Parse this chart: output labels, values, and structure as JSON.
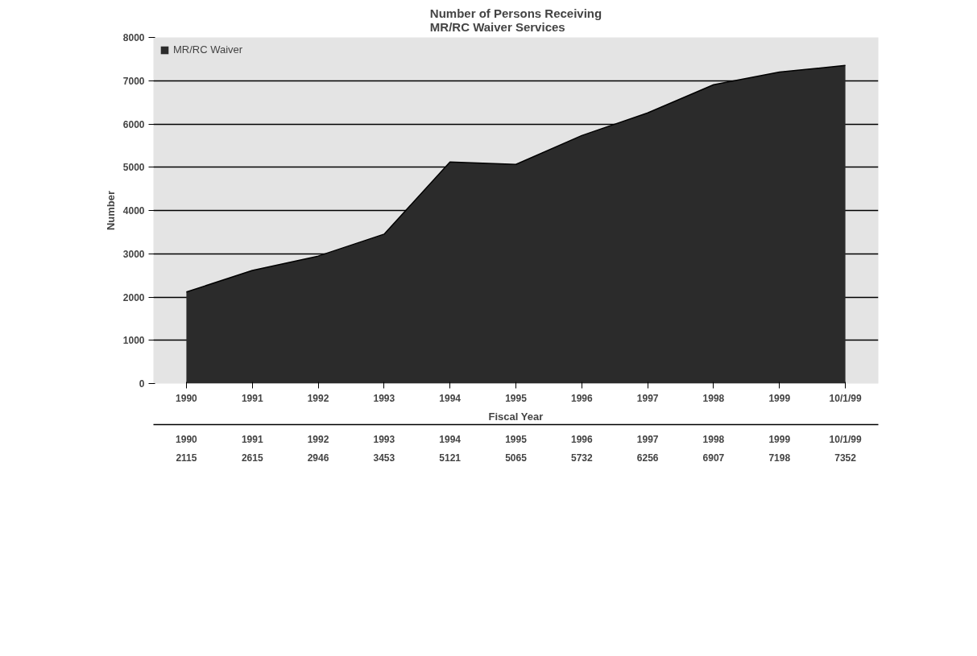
{
  "chart_data": {
    "type": "area",
    "title": "Number of Persons Receiving\nMR/RC Waiver Services",
    "xlabel": "Fiscal Year",
    "ylabel": "Number",
    "categories": [
      "1990",
      "1991",
      "1992",
      "1993",
      "1994",
      "1995",
      "1996",
      "1997",
      "1998",
      "1999",
      "10/1/99"
    ],
    "series": [
      {
        "name": "MR/RC Waiver",
        "color": "#2b2b2b",
        "values": [
          2115,
          2615,
          2946,
          3453,
          5121,
          5065,
          5732,
          6256,
          6907,
          7198,
          7352
        ]
      }
    ],
    "ylim": [
      0,
      8000
    ],
    "yticks": [
      0,
      1000,
      2000,
      3000,
      4000,
      5000,
      6000,
      7000,
      8000
    ],
    "grid": "y",
    "legend": "top left",
    "data_labels": true
  }
}
